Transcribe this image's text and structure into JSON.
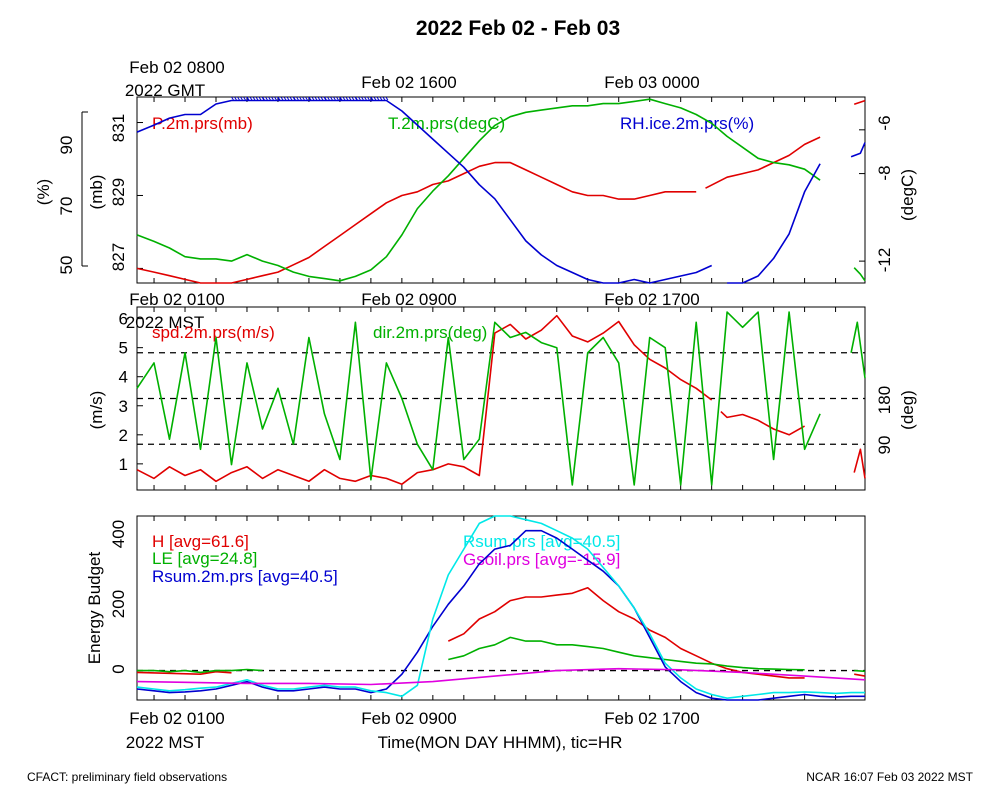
{
  "title": "2022 Feb 02 - Feb 03",
  "footer_left": "CFACT: preliminary field observations",
  "footer_right": "NCAR 16:07 Feb 03 2022 MST",
  "x_axis": {
    "label": "Time(MON DAY HHMM), tic=HR",
    "gmt_ticks": [
      "Feb 02 0800",
      "Feb 02 1600",
      "Feb 03 0000"
    ],
    "gmt_zone": "2022 GMT",
    "mst_ticks": [
      "Feb 02 0100",
      "Feb 02 0900",
      "Feb 02 1700"
    ],
    "mst_zone": "2022 MST"
  },
  "colors": {
    "red": "#e00000",
    "green": "#00b000",
    "blue": "#0000d0",
    "cyan": "#00e8e8",
    "magenta": "#e000e0"
  },
  "chart_data": [
    {
      "type": "line",
      "x_unit": "hours since Feb 02 0000 MST",
      "xlim": [
        0.45,
        23.95
      ],
      "axes": {
        "left_inner": {
          "label": "(mb)",
          "ticks": [
            827,
            829,
            831
          ],
          "range": [
            826.6,
            831.7
          ]
        },
        "left_outer": {
          "label": "(%)",
          "ticks": [
            50,
            70,
            90
          ],
          "range": [
            48,
            101
          ]
        },
        "right": {
          "label": "(degC)",
          "ticks": [
            -12,
            -8,
            -6
          ],
          "range": [
            -13,
            -4.5
          ]
        }
      },
      "series": [
        {
          "name": "P.2m.prs(mb)",
          "color": "red",
          "axis": "left_inner",
          "x": [
            0.45,
            1,
            1.5,
            2,
            2.5,
            3,
            3.5,
            4,
            4.5,
            5,
            5.5,
            6,
            6.5,
            7,
            7.5,
            8,
            8.5,
            9,
            9.5,
            10,
            10.5,
            11,
            11.5,
            12,
            12.5,
            13,
            13.5,
            14,
            14.5,
            15,
            15.5,
            16,
            16.5,
            17,
            17.5,
            18,
            18.5
          ],
          "y": [
            827,
            826.9,
            826.8,
            826.7,
            826.6,
            826.6,
            826.6,
            826.7,
            826.8,
            826.9,
            827.1,
            827.3,
            827.6,
            827.9,
            828.2,
            828.5,
            828.8,
            829,
            829.1,
            829.3,
            829.4,
            829.6,
            829.8,
            829.9,
            829.9,
            829.7,
            829.5,
            829.3,
            829.1,
            829,
            829,
            828.9,
            828.9,
            829,
            829.1,
            829.1,
            829.1
          ]
        },
        {
          "name": "",
          "color": "red",
          "axis": "left_inner",
          "x": [
            18.8,
            19.5,
            20,
            20.5,
            21,
            21.5,
            22,
            22.5
          ],
          "y": [
            829.2,
            829.5,
            829.6,
            829.7,
            829.9,
            830.1,
            830.4,
            830.6
          ]
        },
        {
          "name": "",
          "color": "red",
          "axis": "left_inner",
          "x": [
            23.6,
            23.95
          ],
          "y": [
            831.5,
            831.6
          ]
        },
        {
          "name": "T.2m.prs(degC)",
          "color": "green",
          "axis": "right",
          "x": [
            0.45,
            1,
            1.5,
            2,
            2.5,
            3,
            3.5,
            4,
            4.5,
            5,
            5.5,
            6,
            6.5,
            7,
            7.5,
            8,
            8.5,
            9,
            9.5,
            10,
            10.5,
            11,
            11.5,
            12,
            12.5,
            13,
            13.5,
            14,
            14.5,
            15,
            15.5,
            16,
            16.5,
            17,
            17.5,
            18,
            18.5,
            19,
            19.5,
            20,
            20.5,
            21,
            21.5,
            22,
            22.5
          ],
          "y": [
            -10.8,
            -11.1,
            -11.4,
            -11.8,
            -11.9,
            -11.9,
            -12,
            -11.7,
            -12,
            -12.2,
            -12.5,
            -12.7,
            -12.8,
            -12.9,
            -12.7,
            -12.4,
            -11.8,
            -10.8,
            -9.6,
            -8.8,
            -8.1,
            -7.3,
            -6.5,
            -5.8,
            -5.4,
            -5.2,
            -5.1,
            -5,
            -4.9,
            -4.9,
            -4.8,
            -4.8,
            -4.7,
            -4.6,
            -4.8,
            -5,
            -5.3,
            -5.7,
            -6.3,
            -6.8,
            -7.3,
            -7.5,
            -7.6,
            -7.8,
            -8.3
          ]
        },
        {
          "name": "",
          "color": "green",
          "axis": "right",
          "x": [
            23.6,
            23.8,
            23.95
          ],
          "y": [
            -12.3,
            -12.6,
            -12.9
          ]
        },
        {
          "name": "RH.ice.2m.prs(%)",
          "color": "blue",
          "axis": "left_outer",
          "x": [
            0.45,
            1,
            1.5,
            2,
            2.5,
            3,
            3.5,
            4,
            4.5,
            5,
            5.5,
            6,
            6.5,
            7,
            7.5,
            8,
            8.5,
            9,
            9.5,
            10,
            10.5,
            11,
            11.5,
            12,
            12.5,
            13,
            13.5,
            14,
            14.5,
            15,
            15.5,
            16,
            16.5,
            17,
            17.5,
            18,
            18.5,
            19
          ],
          "y": [
            91,
            93,
            95,
            96,
            96,
            99,
            100,
            100,
            100,
            100,
            100,
            100,
            100,
            100,
            100,
            100,
            100,
            97,
            93,
            89,
            85,
            81,
            76,
            72,
            66,
            60,
            56,
            53,
            51,
            49,
            47,
            48,
            49,
            48,
            49,
            50,
            51,
            53
          ]
        },
        {
          "name": "",
          "color": "blue",
          "axis": "left_outer",
          "x": [
            19.5,
            20,
            20.5,
            21,
            21.5,
            22,
            22.5
          ],
          "y": [
            48,
            48,
            50,
            55,
            62,
            74,
            82
          ]
        },
        {
          "name": "",
          "color": "blue",
          "axis": "left_outer",
          "x": [
            23.5,
            23.8,
            23.95
          ],
          "y": [
            84,
            85,
            88
          ]
        }
      ]
    },
    {
      "type": "line",
      "x_unit": "hours since Feb 02 0000 MST",
      "xlim": [
        0.45,
        23.95
      ],
      "axes": {
        "left": {
          "label": "(m/s)",
          "ticks": [
            1,
            2,
            3,
            4,
            5,
            6
          ],
          "range": [
            0.1,
            6.4
          ]
        },
        "right": {
          "label": "(deg)",
          "ticks": [
            90,
            180
          ],
          "range": [
            0,
            360
          ]
        }
      },
      "reference_lines_deg": [
        90,
        180,
        270
      ],
      "series": [
        {
          "name": "spd.2m.prs(m/s)",
          "color": "red",
          "axis": "left",
          "x": [
            0.45,
            1,
            1.5,
            2,
            2.5,
            3,
            3.5,
            4,
            4.5,
            5,
            5.5,
            6,
            6.5,
            7,
            7.5,
            8,
            8.5,
            9,
            9.5,
            10,
            10.5,
            11,
            11.5,
            12,
            12.5,
            13,
            13.5,
            14,
            14.5,
            15,
            15.5,
            16,
            16.5,
            17,
            17.5,
            18,
            18.5,
            19
          ],
          "y": [
            0.8,
            0.5,
            0.9,
            0.6,
            0.8,
            0.4,
            0.7,
            0.9,
            0.5,
            0.8,
            0.6,
            0.4,
            0.8,
            0.5,
            0.4,
            0.6,
            0.5,
            0.3,
            0.7,
            0.8,
            1,
            0.9,
            0.6,
            5.5,
            5.8,
            5.3,
            5.6,
            6.1,
            5.4,
            5.2,
            5.5,
            5.9,
            5.1,
            4.6,
            4.3,
            3.9,
            3.6,
            3.2
          ]
        },
        {
          "name": "",
          "color": "red",
          "axis": "left",
          "x": [
            19.3,
            19.5,
            20,
            20.5,
            21,
            21.5,
            22
          ],
          "y": [
            2.8,
            2.6,
            2.7,
            2.5,
            2.2,
            2,
            2.3
          ]
        },
        {
          "name": "",
          "color": "red",
          "axis": "left",
          "x": [
            23.6,
            23.8,
            23.95
          ],
          "y": [
            0.7,
            1.5,
            0.5
          ]
        },
        {
          "name": "dir.2m.prs(deg)",
          "color": "green",
          "axis": "right",
          "x": [
            0.45,
            1,
            1.5,
            2,
            2.5,
            3,
            3.5,
            4,
            4.5,
            5,
            5.5,
            6,
            6.5,
            7,
            7.5,
            8,
            8.5,
            9,
            9.5,
            10,
            10.5,
            11,
            11.5,
            12,
            12.5,
            13,
            13.5,
            14,
            14.5,
            15,
            15.5,
            16,
            16.5,
            17,
            17.5,
            18,
            18.5,
            19,
            19.5,
            20,
            20.5,
            21,
            21.5,
            22,
            22.5
          ],
          "y": [
            200,
            250,
            100,
            270,
            80,
            300,
            50,
            250,
            120,
            200,
            90,
            300,
            150,
            60,
            330,
            20,
            250,
            180,
            90,
            40,
            300,
            60,
            100,
            330,
            300,
            310,
            290,
            280,
            10,
            270,
            300,
            250,
            10,
            300,
            280,
            10,
            330,
            10,
            350,
            320,
            350,
            60,
            350,
            80,
            150
          ]
        },
        {
          "name": "",
          "color": "green",
          "axis": "right",
          "x": [
            23.5,
            23.7,
            23.95
          ],
          "y": [
            270,
            330,
            220
          ]
        }
      ]
    },
    {
      "type": "line",
      "x_unit": "hours since Feb 02 0000 MST",
      "xlim": [
        0.45,
        23.95
      ],
      "axes": {
        "left": {
          "label": "Energy Budget",
          "ticks": [
            0,
            200,
            400
          ],
          "range": [
            -80,
            420
          ]
        }
      },
      "reference_lines": [
        0
      ],
      "series": [
        {
          "name": "H [avg=61.6]",
          "color": "red",
          "x": [
            0.45,
            2.5,
            3,
            3.5
          ],
          "y": [
            -5,
            -10,
            -3,
            -6
          ]
        },
        {
          "name": "",
          "color": "red",
          "x": [
            10.5,
            11,
            11.5,
            12,
            12.5,
            13,
            13.5,
            14,
            14.5,
            15,
            15.5,
            16,
            16.5,
            17,
            17.5,
            18,
            18.5,
            19,
            19.5,
            20,
            20.5,
            21,
            21.5,
            22
          ],
          "y": [
            80,
            100,
            140,
            160,
            190,
            200,
            200,
            205,
            210,
            225,
            190,
            160,
            140,
            110,
            90,
            60,
            40,
            20,
            5,
            -5,
            -10,
            -15,
            -20,
            -20
          ]
        },
        {
          "name": "",
          "color": "red",
          "x": [
            23.6,
            23.95
          ],
          "y": [
            -10,
            -15
          ]
        },
        {
          "name": "LE [avg=24.8]",
          "color": "green",
          "x": [
            0.45,
            1,
            1.5,
            2,
            2.5,
            3,
            3.5,
            4,
            4.5
          ],
          "y": [
            0,
            0,
            -3,
            0,
            -5,
            0,
            0,
            3,
            0
          ]
        },
        {
          "name": "",
          "color": "green",
          "x": [
            10.5,
            11,
            11.5,
            12,
            12.5,
            13,
            13.5,
            14,
            14.5,
            15,
            15.5,
            16,
            16.5,
            17,
            17.5,
            18,
            18.5,
            19,
            19.5,
            20,
            20.5,
            21,
            21.5,
            22
          ],
          "y": [
            30,
            40,
            60,
            70,
            90,
            80,
            80,
            70,
            70,
            65,
            60,
            50,
            40,
            35,
            30,
            25,
            20,
            18,
            12,
            8,
            5,
            4,
            3,
            2
          ]
        },
        {
          "name": "",
          "color": "green",
          "x": [
            23.6,
            23.95
          ],
          "y": [
            0,
            -2
          ]
        },
        {
          "name": "Rsum.2m.prs [avg=40.5]",
          "color": "blue",
          "x": [
            0.45,
            1,
            1.5,
            2,
            2.5,
            3,
            3.5,
            4,
            4.5,
            5,
            5.5,
            6,
            6.5,
            7,
            7.5,
            8,
            8.5,
            9,
            9.5,
            10,
            10.5,
            11,
            11.5,
            12,
            12.5,
            13,
            13.5,
            14,
            14.5,
            15,
            15.5,
            16,
            16.5,
            17,
            17.5,
            18,
            18.5,
            19,
            19.5,
            20,
            20.5,
            21,
            21.5,
            22,
            22.5,
            23,
            23.5,
            23.95
          ],
          "y": [
            -50,
            -55,
            -60,
            -58,
            -55,
            -50,
            -40,
            -30,
            -45,
            -55,
            -55,
            -50,
            -45,
            -50,
            -50,
            -60,
            -50,
            -10,
            50,
            120,
            180,
            230,
            290,
            330,
            340,
            380,
            380,
            360,
            330,
            300,
            270,
            230,
            170,
            90,
            10,
            -30,
            -60,
            -75,
            -80,
            -80,
            -80,
            -75,
            -70,
            -65,
            -70,
            -72,
            -70,
            -70
          ]
        },
        {
          "name": "Rsum.prs [avg=40.5]",
          "color": "cyan",
          "x": [
            0.45,
            1,
            1.5,
            2,
            2.5,
            3,
            3.5,
            4,
            4.5,
            5,
            5.5,
            6,
            6.5,
            7,
            7.5,
            8,
            8.5,
            9,
            9.5,
            10,
            10.5,
            11,
            11.5,
            12,
            12.5,
            13,
            13.5,
            14,
            14.5,
            15,
            15.5,
            16,
            16.5,
            17,
            17.5,
            18,
            18.5,
            19,
            19.5,
            20,
            20.5,
            21,
            21.5,
            22,
            22.5,
            23,
            23.5,
            23.95
          ],
          "y": [
            -45,
            -50,
            -55,
            -52,
            -48,
            -45,
            -35,
            -25,
            -40,
            -50,
            -50,
            -45,
            -40,
            -45,
            -45,
            -55,
            -60,
            -70,
            -40,
            140,
            260,
            330,
            400,
            430,
            420,
            410,
            400,
            380,
            360,
            330,
            280,
            230,
            170,
            100,
            20,
            -20,
            -50,
            -65,
            -75,
            -70,
            -65,
            -60,
            -60,
            -58,
            -60,
            -62,
            -60,
            -60
          ]
        },
        {
          "name": "Gsoil.prs [avg=-15.9]",
          "color": "magenta",
          "x": [
            0.45,
            2,
            4,
            6,
            8,
            10,
            12,
            14,
            16,
            18,
            20,
            22,
            23.95
          ],
          "y": [
            -30,
            -32,
            -35,
            -35,
            -38,
            -30,
            -15,
            0,
            5,
            2,
            -5,
            -15,
            -25
          ]
        }
      ]
    }
  ]
}
